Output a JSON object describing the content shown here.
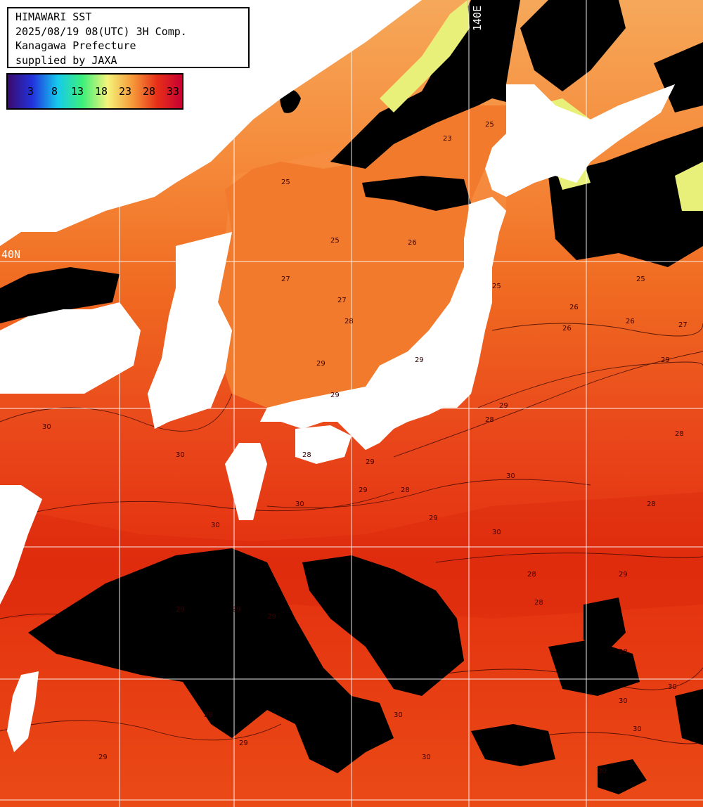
{
  "header": {
    "line1": "HIMAWARI SST",
    "line2": "2025/08/19 08(UTC) 3H Comp.",
    "line3": "Kanagawa Prefecture",
    "line4": "supplied by JAXA"
  },
  "colorbar": {
    "ticks": [
      "3",
      "8",
      "13",
      "18",
      "23",
      "28",
      "33"
    ],
    "colors": [
      "#3a0a6e",
      "#2233dd",
      "#15c9ee",
      "#3cf07a",
      "#f4f47a",
      "#f69a3a",
      "#e62f18",
      "#c80032"
    ]
  },
  "graticule": {
    "lat_label": "40N",
    "lon_label": "140E"
  },
  "contour_labels": [
    "25",
    "25",
    "26",
    "25",
    "27",
    "27",
    "28",
    "29",
    "29",
    "29",
    "30",
    "30",
    "30",
    "28",
    "29",
    "28",
    "30",
    "29",
    "29",
    "30",
    "28",
    "29",
    "28",
    "30",
    "28",
    "29",
    "28",
    "29",
    "25",
    "26",
    "26",
    "26",
    "27",
    "28",
    "28",
    "29",
    "29",
    "29",
    "28",
    "29",
    "30",
    "30",
    "30",
    "30",
    "30",
    "30",
    "29",
    "23",
    "25"
  ],
  "colors": {
    "sea_warm": "#ee4a12",
    "sea_hot": "#e2300c",
    "sea_cool": "#f68d3c",
    "land": "#ffffff",
    "cloud": "#000000",
    "grid": "#ffffff"
  }
}
